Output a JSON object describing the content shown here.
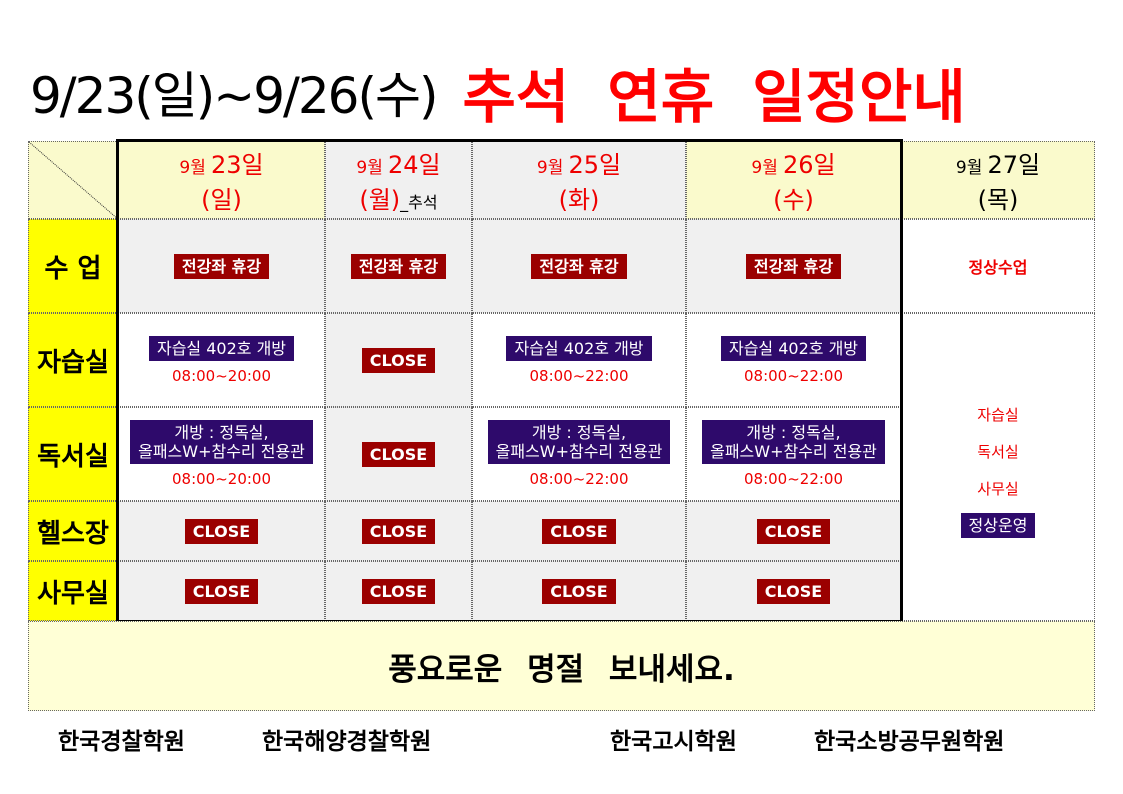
{
  "title": {
    "dates": "9/23(일)~9/26(수)",
    "main": "추석 연휴 일정안내"
  },
  "columns": [
    {
      "month": "9월",
      "day": "23일",
      "weekday": "(일)",
      "suffix": "",
      "color": "#e00",
      "bg": "#fafacc"
    },
    {
      "month": "9월",
      "day": "24일",
      "weekday": "(월)",
      "suffix": "_추석",
      "color": "#e00",
      "bg": "#f0f0f0"
    },
    {
      "month": "9월",
      "day": "25일",
      "weekday": "(화)",
      "suffix": "",
      "color": "#e00",
      "bg": "#f0f0f0"
    },
    {
      "month": "9월",
      "day": "26일",
      "weekday": "(수)",
      "suffix": "",
      "color": "#e00",
      "bg": "#fafacc"
    },
    {
      "month": "9월",
      "day": "27일",
      "weekday": "(목)",
      "suffix": "",
      "color": "#000",
      "bg": "#fafacc"
    }
  ],
  "rows": [
    {
      "label": "수 업",
      "cells": [
        {
          "badge": "전강좌 휴강",
          "style": "red",
          "bg": "#f0f0f0"
        },
        {
          "badge": "전강좌 휴강",
          "style": "red",
          "bg": "#f0f0f0"
        },
        {
          "badge": "전강좌 휴강",
          "style": "red",
          "bg": "#f0f0f0"
        },
        {
          "badge": "전강좌 휴강",
          "style": "red",
          "bg": "#f0f0f0"
        }
      ]
    },
    {
      "label": "자습실",
      "cells": [
        {
          "badge": "자습실 402호 개방",
          "style": "purple",
          "time": "08:00~20:00",
          "bg": "#fff"
        },
        {
          "badge": "CLOSE",
          "style": "red",
          "bg": "#f0f0f0"
        },
        {
          "badge": "자습실 402호 개방",
          "style": "purple",
          "time": "08:00~22:00",
          "bg": "#fff"
        },
        {
          "badge": "자습실 402호 개방",
          "style": "purple",
          "time": "08:00~22:00",
          "bg": "#fff"
        }
      ]
    },
    {
      "label": "독서실",
      "cells": [
        {
          "badge": "개방 : 정독실,\n올패스W+참수리 전용관",
          "style": "purple",
          "time": "08:00~20:00",
          "bg": "#fff"
        },
        {
          "badge": "CLOSE",
          "style": "red",
          "bg": "#f0f0f0"
        },
        {
          "badge": "개방 : 정독실,\n올패스W+참수리 전용관",
          "style": "purple",
          "time": "08:00~22:00",
          "bg": "#fff"
        },
        {
          "badge": "개방 : 정독실,\n올패스W+참수리 전용관",
          "style": "purple",
          "time": "08:00~22:00",
          "bg": "#fff"
        }
      ]
    },
    {
      "label": "헬스장",
      "cells": [
        {
          "badge": "CLOSE",
          "style": "red",
          "bg": "#f0f0f0"
        },
        {
          "badge": "CLOSE",
          "style": "red",
          "bg": "#f0f0f0"
        },
        {
          "badge": "CLOSE",
          "style": "red",
          "bg": "#f0f0f0"
        },
        {
          "badge": "CLOSE",
          "style": "red",
          "bg": "#f0f0f0"
        }
      ]
    },
    {
      "label": "사무실",
      "cells": [
        {
          "badge": "CLOSE",
          "style": "red",
          "bg": "#f0f0f0"
        },
        {
          "badge": "CLOSE",
          "style": "red",
          "bg": "#f0f0f0"
        },
        {
          "badge": "CLOSE",
          "style": "red",
          "bg": "#f0f0f0"
        },
        {
          "badge": "CLOSE",
          "style": "red",
          "bg": "#f0f0f0"
        }
      ]
    }
  ],
  "day27": {
    "class": "정상수업",
    "facilities": [
      "자습실",
      "독서실",
      "사무실"
    ],
    "status": "정상운영"
  },
  "banner": "풍요로운 명절 보내세요.",
  "academies": [
    "한국경찰학원",
    "한국해양경찰학원",
    "한국고시학원",
    "한국소방공무원학원"
  ],
  "colors": {
    "title_red": "#ff0000",
    "row_header": "#ffff00",
    "close_badge": "#9b0000",
    "open_badge": "#2e0a6b"
  }
}
